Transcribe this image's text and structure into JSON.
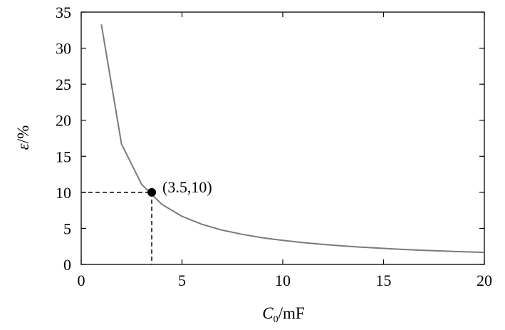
{
  "chart_data": {
    "type": "line",
    "title": "",
    "xlabel": {
      "var": "C",
      "sub": "0",
      "unit": "/mF"
    },
    "ylabel": {
      "var": "ε",
      "unit": "/%"
    },
    "xlim": [
      0,
      20
    ],
    "ylim": [
      0,
      35
    ],
    "xticks": [
      0,
      5,
      10,
      15,
      20
    ],
    "yticks": [
      0,
      5,
      10,
      15,
      20,
      25,
      30,
      35
    ],
    "x_tick_labels": [
      "0",
      "5",
      "10",
      "15",
      "20"
    ],
    "y_tick_labels": [
      "0",
      "5",
      "10",
      "15",
      "20",
      "25",
      "30",
      "35"
    ],
    "grid": false,
    "series": [
      {
        "color": "#7a7a7a",
        "x": [
          1,
          2,
          3,
          4,
          5,
          6,
          7,
          8,
          9,
          10,
          11,
          12,
          13,
          14,
          15,
          16,
          17,
          18,
          19,
          20
        ],
        "y": [
          33.3,
          16.7,
          11.1,
          8.33,
          6.67,
          5.56,
          4.76,
          4.17,
          3.7,
          3.33,
          3.03,
          2.78,
          2.56,
          2.38,
          2.22,
          2.08,
          1.96,
          1.85,
          1.75,
          1.67
        ]
      }
    ],
    "annotation": {
      "point": [
        3.5,
        10
      ],
      "label": "(3.5,10)",
      "guide_lines": "dashed"
    }
  }
}
